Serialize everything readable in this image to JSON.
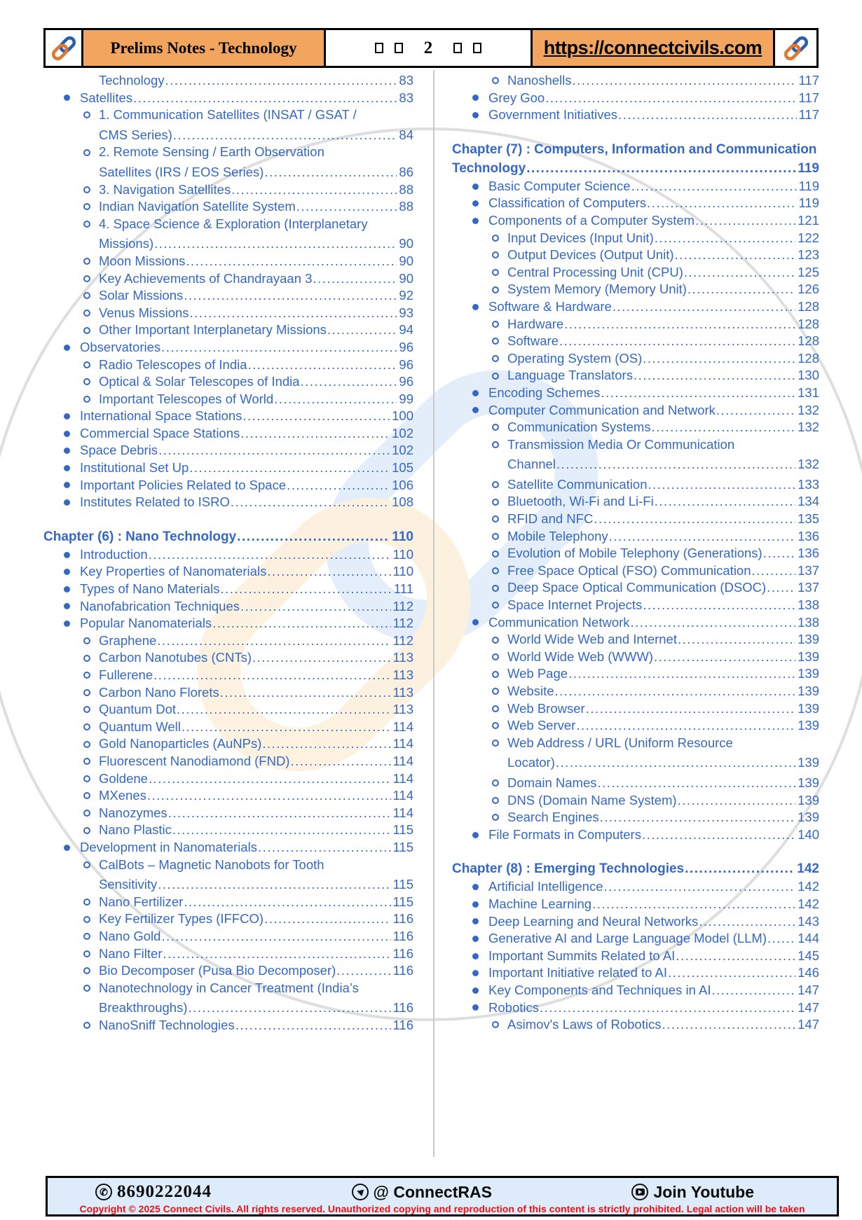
{
  "header": {
    "logo_left": "chain-link-logo",
    "title": "Prelims Notes - Technology",
    "nav": {
      "left_squares": 2,
      "page_number": "2",
      "right_squares": 2
    },
    "url": "https://connectcivils.com",
    "logo_right": "chain-link-logo"
  },
  "toc": {
    "left": [
      {
        "k": "cont",
        "t": "Technology",
        "p": "83"
      },
      {
        "k": "bullet",
        "t": "Satellites",
        "p": "83"
      },
      {
        "k": "sub-wrap",
        "t": "1. Communication Satellites (INSAT / GSAT /"
      },
      {
        "k": "cont",
        "t": "CMS Series)",
        "p": "84",
        "sp": 1
      },
      {
        "k": "sub-wrap",
        "t": "2. Remote Sensing / Earth Observation"
      },
      {
        "k": "cont",
        "t": "Satellites (IRS / EOS Series)",
        "p": "86",
        "sp": 1
      },
      {
        "k": "sub",
        "t": "3. Navigation Satellites",
        "p": "88"
      },
      {
        "k": "sub",
        "t": "Indian Navigation Satellite System",
        "p": "88"
      },
      {
        "k": "sub-wrap",
        "t": "4. Space Science & Exploration (Interplanetary"
      },
      {
        "k": "cont",
        "t": "Missions)",
        "p": "90",
        "sp": 1
      },
      {
        "k": "sub",
        "t": "Moon Missions",
        "p": "90"
      },
      {
        "k": "sub",
        "t": "Key Achievements of Chandrayaan 3",
        "p": "90"
      },
      {
        "k": "sub",
        "t": "Solar Missions",
        "p": "92"
      },
      {
        "k": "sub",
        "t": "Venus Missions",
        "p": "93"
      },
      {
        "k": "sub",
        "t": "Other Important Interplanetary Missions",
        "p": "94"
      },
      {
        "k": "bullet",
        "t": "Observatories",
        "p": "96"
      },
      {
        "k": "sub",
        "t": "Radio Telescopes of India",
        "p": "96"
      },
      {
        "k": "sub",
        "t": "Optical & Solar Telescopes of India",
        "p": "96"
      },
      {
        "k": "sub",
        "t": "Important Telescopes of World",
        "p": "99"
      },
      {
        "k": "bullet",
        "t": "International Space Stations",
        "p": "100"
      },
      {
        "k": "bullet",
        "t": "Commercial Space Stations",
        "p": "102"
      },
      {
        "k": "bullet",
        "t": "Space Debris",
        "p": "102"
      },
      {
        "k": "bullet",
        "t": "Institutional Set Up",
        "p": "105"
      },
      {
        "k": "bullet",
        "t": "Important Policies Related to Space",
        "p": "106"
      },
      {
        "k": "bullet",
        "t": "Institutes Related to ISRO",
        "p": "108"
      },
      {
        "k": "gap"
      },
      {
        "k": "chapter",
        "t": "Chapter (6) : Nano Technology",
        "p": "110"
      },
      {
        "k": "bullet",
        "t": "Introduction",
        "p": "110"
      },
      {
        "k": "bullet",
        "t": "Key Properties of Nanomaterials",
        "p": "110"
      },
      {
        "k": "bullet",
        "t": "Types of Nano Materials",
        "p": "111"
      },
      {
        "k": "bullet",
        "t": "Nanofabrication Techniques",
        "p": "112"
      },
      {
        "k": "bullet",
        "t": "Popular Nanomaterials",
        "p": "112"
      },
      {
        "k": "sub",
        "t": "Graphene",
        "p": "112"
      },
      {
        "k": "sub",
        "t": "Carbon Nanotubes (CNTs)",
        "p": "113"
      },
      {
        "k": "sub",
        "t": "Fullerene",
        "p": "113"
      },
      {
        "k": "sub",
        "t": "Carbon Nano Florets",
        "p": "113"
      },
      {
        "k": "sub",
        "t": "Quantum Dot",
        "p": "113"
      },
      {
        "k": "sub",
        "t": "Quantum Well",
        "p": "114"
      },
      {
        "k": "sub",
        "t": "Gold Nanoparticles (AuNPs)",
        "p": "114"
      },
      {
        "k": "sub",
        "t": "Fluorescent Nanodiamond (FND)",
        "p": "114"
      },
      {
        "k": "sub",
        "t": "Goldene",
        "p": "114"
      },
      {
        "k": "sub",
        "t": "MXenes",
        "p": "114"
      },
      {
        "k": "sub",
        "t": "Nanozymes",
        "p": "114"
      },
      {
        "k": "sub",
        "t": "Nano Plastic",
        "p": "115"
      },
      {
        "k": "bullet",
        "t": "Development in Nanomaterials",
        "p": "115"
      },
      {
        "k": "sub-wrap",
        "t": "CalBots – Magnetic Nanobots for Tooth"
      },
      {
        "k": "cont",
        "t": "Sensitivity",
        "p": "115",
        "sp": 1
      },
      {
        "k": "sub",
        "t": "Nano Fertilizer",
        "p": "115"
      },
      {
        "k": "sub",
        "t": "Key Fertilizer Types (IFFCO)",
        "p": "116"
      },
      {
        "k": "sub",
        "t": "Nano Gold",
        "p": "116"
      },
      {
        "k": "sub",
        "t": "Nano Filter",
        "p": "116"
      },
      {
        "k": "sub",
        "t": "Bio Decomposer (Pusa Bio Decomposer)",
        "p": "116"
      },
      {
        "k": "sub-wrap",
        "t": "Nanotechnology in Cancer Treatment (India’s"
      },
      {
        "k": "cont",
        "t": "Breakthroughs)",
        "p": "116",
        "sp": 1
      },
      {
        "k": "sub",
        "t": "NanoSniff Technologies",
        "p": "116"
      }
    ],
    "right": [
      {
        "k": "sub",
        "t": "Nanoshells",
        "p": "117"
      },
      {
        "k": "bullet",
        "t": "Grey Goo",
        "p": "117"
      },
      {
        "k": "bullet",
        "t": "Government Initiatives",
        "p": "117"
      },
      {
        "k": "gap"
      },
      {
        "k": "chapter-wrap",
        "t": "Chapter (7) : Computers, Information and Communication"
      },
      {
        "k": "chapter",
        "t": "Technology",
        "p": "119"
      },
      {
        "k": "bullet",
        "t": "Basic Computer Science",
        "p": "119"
      },
      {
        "k": "bullet",
        "t": "Classification of Computers",
        "p": "119"
      },
      {
        "k": "bullet",
        "t": "Components of a Computer System",
        "p": "121"
      },
      {
        "k": "sub",
        "t": "Input Devices (Input Unit)",
        "p": "122"
      },
      {
        "k": "sub",
        "t": "Output Devices (Output Unit)",
        "p": "123"
      },
      {
        "k": "sub",
        "t": "Central Processing Unit (CPU)",
        "p": "125"
      },
      {
        "k": "sub",
        "t": "System Memory (Memory Unit)",
        "p": "126"
      },
      {
        "k": "bullet",
        "t": "Software & Hardware",
        "p": "128"
      },
      {
        "k": "sub",
        "t": "Hardware",
        "p": "128"
      },
      {
        "k": "sub",
        "t": "Software",
        "p": "128"
      },
      {
        "k": "sub",
        "t": "Operating System (OS)",
        "p": "128"
      },
      {
        "k": "sub",
        "t": "Language Translators",
        "p": "130"
      },
      {
        "k": "bullet",
        "t": "Encoding Schemes",
        "p": "131"
      },
      {
        "k": "bullet",
        "t": "Computer Communication and Network",
        "p": "132"
      },
      {
        "k": "sub",
        "t": "Communication Systems",
        "p": "132"
      },
      {
        "k": "sub-wrap",
        "t": "Transmission Media Or Communication"
      },
      {
        "k": "cont",
        "t": "Channel",
        "p": "132",
        "sp": 1
      },
      {
        "k": "sub",
        "t": "Satellite Communication",
        "p": "133",
        "sp": 1
      },
      {
        "k": "sub",
        "t": "Bluetooth, Wi-Fi and Li-Fi",
        "p": "134"
      },
      {
        "k": "sub",
        "t": "RFID and NFC",
        "p": "135"
      },
      {
        "k": "sub",
        "t": "Mobile Telephony",
        "p": "136"
      },
      {
        "k": "sub",
        "t": "Evolution of Mobile Telephony (Generations)",
        "p": "136"
      },
      {
        "k": "sub",
        "t": "Free Space Optical (FSO) Communication",
        "p": "137"
      },
      {
        "k": "sub",
        "t": "Deep Space Optical Communication (DSOC)",
        "p": "137"
      },
      {
        "k": "sub",
        "t": "Space Internet Projects",
        "p": "138"
      },
      {
        "k": "bullet",
        "t": "Communication Network",
        "p": "138"
      },
      {
        "k": "sub",
        "t": "World Wide Web and Internet",
        "p": "139"
      },
      {
        "k": "sub",
        "t": "World Wide Web (WWW)",
        "p": "139"
      },
      {
        "k": "sub",
        "t": "Web Page",
        "p": "139"
      },
      {
        "k": "sub",
        "t": "Website",
        "p": "139"
      },
      {
        "k": "sub",
        "t": "Web Browser",
        "p": "139"
      },
      {
        "k": "sub",
        "t": "Web Server",
        "p": "139"
      },
      {
        "k": "sub-wrap",
        "t": "Web Address / URL (Uniform Resource"
      },
      {
        "k": "cont",
        "t": "Locator)",
        "p": "139",
        "sp": 1
      },
      {
        "k": "sub",
        "t": "Domain Names",
        "p": "139",
        "sp": 1
      },
      {
        "k": "sub",
        "t": "DNS (Domain Name System)",
        "p": "139"
      },
      {
        "k": "sub",
        "t": "Search Engines",
        "p": "139"
      },
      {
        "k": "bullet",
        "t": "File Formats in Computers",
        "p": "140"
      },
      {
        "k": "gap"
      },
      {
        "k": "chapter",
        "t": "Chapter (8) : Emerging Technologies",
        "p": "142"
      },
      {
        "k": "bullet",
        "t": "Artificial Intelligence",
        "p": "142"
      },
      {
        "k": "bullet",
        "t": "Machine Learning",
        "p": "142"
      },
      {
        "k": "bullet",
        "t": "Deep Learning and Neural Networks",
        "p": "143"
      },
      {
        "k": "bullet",
        "t": "Generative AI and Large Language Model (LLM)",
        "p": "144"
      },
      {
        "k": "bullet",
        "t": "Important Summits Related to AI",
        "p": "145"
      },
      {
        "k": "bullet",
        "t": "Important Initiative related to AI",
        "p": "146"
      },
      {
        "k": "bullet",
        "t": "Key Components and Techniques in AI",
        "p": "147"
      },
      {
        "k": "bullet",
        "t": "Robotics",
        "p": "147"
      },
      {
        "k": "sub",
        "t": "Asimov's Laws of Robotics",
        "p": "147"
      }
    ]
  },
  "footer": {
    "phone": "8690222044",
    "phone_icon": "phone-icon",
    "telegram_handle": "@ ConnectRAS",
    "telegram_icon": "telegram-icon",
    "youtube_label": "Join Youtube",
    "youtube_icon": "youtube-icon",
    "copyright": "Copyright © 2025 Connect Civils. All rights reserved. Unauthorized copying and reproduction of this content is strictly prohibited. Legal action will be taken"
  },
  "colors": {
    "accent_orange": "#f2a55e",
    "toc_blue": "#3568c5",
    "footer_bg": "#ddebfb",
    "copyright_red": "#ee1111",
    "divider_gray": "#c9c9c9",
    "watermark_blue": "#cee0f6",
    "watermark_orange": "#fbe7c4",
    "watermark_circle": "#dedede"
  }
}
